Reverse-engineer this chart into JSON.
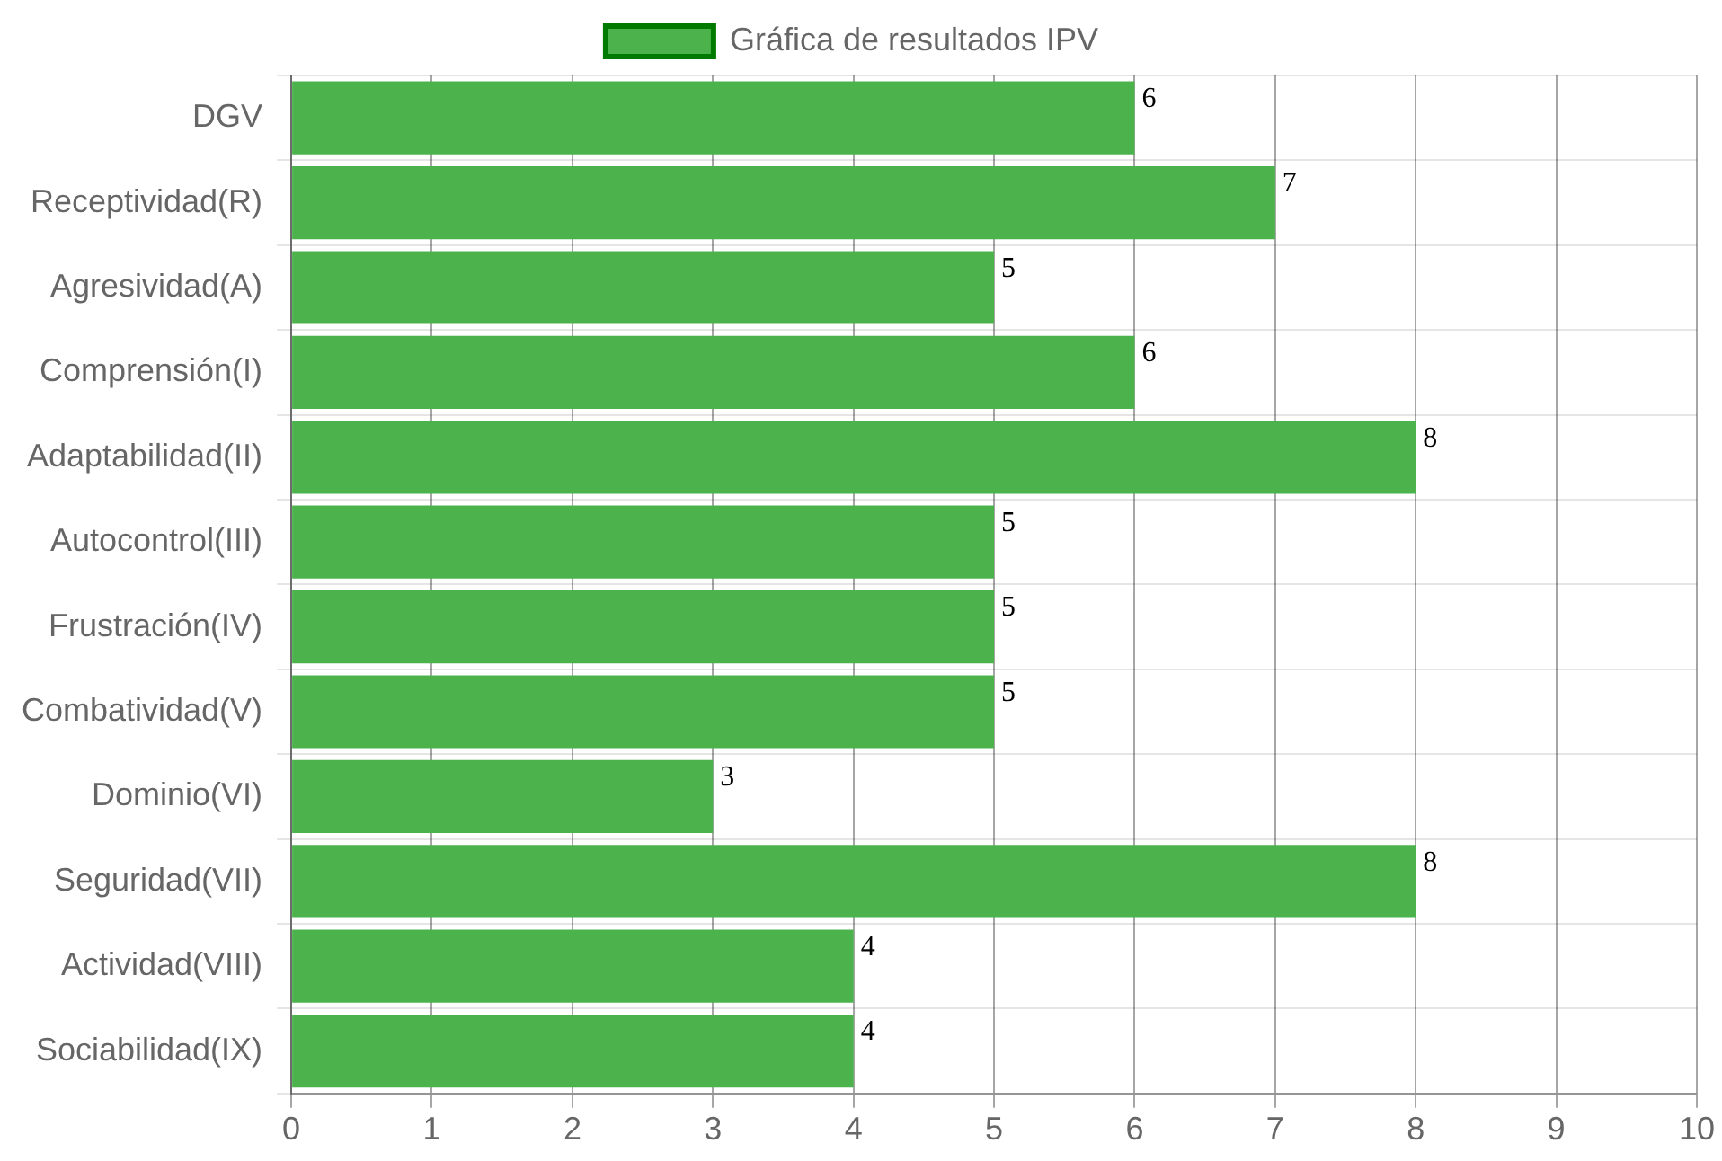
{
  "chart_data": {
    "type": "bar",
    "orientation": "horizontal",
    "categories": [
      "DGV",
      "Receptividad(R)",
      "Agresividad(A)",
      "Comprensión(I)",
      "Adaptabilidad(II)",
      "Autocontrol(III)",
      "Frustración(IV)",
      "Combatividad(V)",
      "Dominio(VI)",
      "Seguridad(VII)",
      "Actividad(VIII)",
      "Sociabilidad(IX)"
    ],
    "series": [
      {
        "name": "Gráfica de resultados IPV",
        "color": "#4cb34c",
        "values": [
          6,
          7,
          5,
          6,
          8,
          5,
          5,
          5,
          3,
          8,
          4,
          4
        ]
      }
    ],
    "xlim": [
      0,
      10
    ],
    "xticks": [
      0,
      1,
      2,
      3,
      4,
      5,
      6,
      7,
      8,
      9,
      10
    ],
    "grid": true,
    "legend": "top",
    "data_labels": true
  }
}
